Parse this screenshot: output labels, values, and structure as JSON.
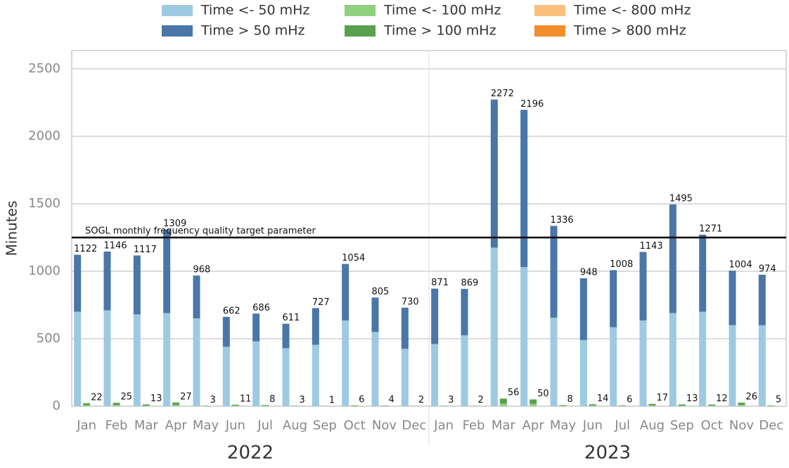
{
  "chart_data": {
    "type": "grouped-stacked-bar",
    "y_label": "Minutes",
    "categories": [
      "Jan",
      "Feb",
      "Mar",
      "Apr",
      "May",
      "Jun",
      "Jul",
      "Aug",
      "Sep",
      "Oct",
      "Nov",
      "Dec",
      "Jan",
      "Feb",
      "Mar",
      "Apr",
      "May",
      "Jun",
      "Jul",
      "Aug",
      "Sep",
      "Oct",
      "Nov",
      "Dec"
    ],
    "years": [
      "2022",
      "2023"
    ],
    "series": [
      {
        "name": "Time <- 50 mHz",
        "color": "#9ecae1",
        "values": [
          700,
          710,
          680,
          690,
          650,
          440,
          480,
          430,
          455,
          635,
          550,
          425,
          460,
          525,
          1175,
          1030,
          655,
          490,
          585,
          635,
          690,
          700,
          600,
          600
        ]
      },
      {
        "name": "Time > 50 mHz",
        "color": "#4a76a8",
        "values": [
          422,
          436,
          437,
          619,
          318,
          222,
          206,
          181,
          272,
          419,
          255,
          305,
          411,
          344,
          1097,
          1166,
          681,
          458,
          423,
          508,
          805,
          571,
          404,
          374
        ]
      },
      {
        "name": "Time <- 100 mHz",
        "color": "#8fd17f",
        "values": [
          7,
          8,
          4,
          9,
          1,
          4,
          3,
          1,
          0,
          2,
          1,
          1,
          1,
          1,
          19,
          17,
          3,
          5,
          2,
          6,
          4,
          4,
          9,
          2
        ]
      },
      {
        "name": "Time > 100 mHz",
        "color": "#59a14f",
        "values": [
          15,
          17,
          9,
          18,
          2,
          7,
          5,
          2,
          1,
          4,
          3,
          1,
          2,
          1,
          37,
          33,
          5,
          9,
          4,
          11,
          9,
          8,
          17,
          3
        ]
      },
      {
        "name": "Time <- 800 mHz",
        "color": "#fbbf7e",
        "values": [
          0,
          0,
          0,
          0,
          0,
          0,
          0,
          0,
          0,
          0,
          0,
          0,
          0,
          0,
          0,
          0,
          0,
          0,
          0,
          0,
          0,
          0,
          0,
          0
        ]
      },
      {
        "name": "Time > 800 mHz",
        "color": "#f28e2b",
        "values": [
          0,
          0,
          0,
          0,
          0,
          0,
          0,
          0,
          0,
          0,
          0,
          0,
          0,
          0,
          0,
          0,
          0,
          0,
          0,
          0,
          0,
          0,
          0,
          0
        ]
      }
    ],
    "totals": [
      [
        1122,
        1146,
        1117,
        1309,
        968,
        662,
        686,
        611,
        727,
        1054,
        805,
        730,
        871,
        869,
        2272,
        2196,
        1336,
        948,
        1008,
        1143,
        1495,
        1271,
        1004,
        974
      ],
      [
        22,
        25,
        13,
        27,
        3,
        11,
        8,
        3,
        1,
        6,
        4,
        2,
        3,
        2,
        56,
        50,
        8,
        14,
        6,
        17,
        13,
        12,
        26,
        5
      ]
    ],
    "target": {
      "value": 1250,
      "label": "SOGL monthly frequency quality target parameter"
    },
    "ylim": [
      0,
      2635
    ],
    "yticks": [
      0,
      500,
      1000,
      1500,
      2000,
      2500
    ],
    "grid": true
  }
}
